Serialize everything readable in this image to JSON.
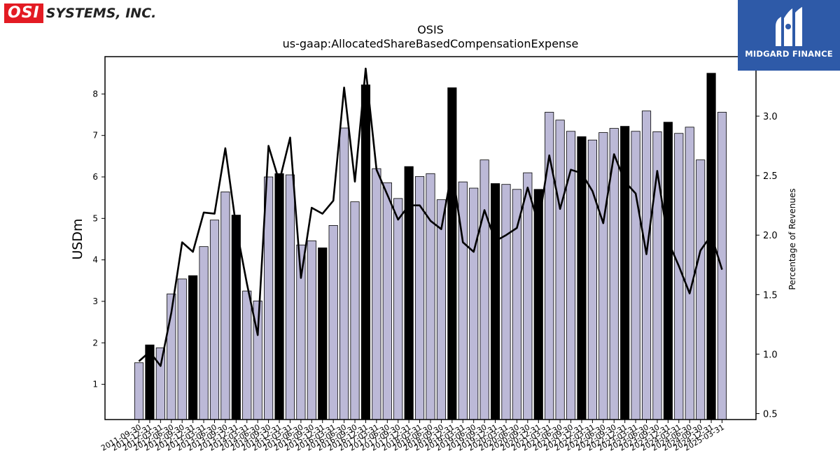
{
  "logos": {
    "left_box": "OSI",
    "left_text": "SYSTEMS, INC.",
    "right_text": "MIDGARD FINANCE"
  },
  "chart_data": {
    "type": "bar",
    "title": "OSIS",
    "subtitle": "us-gaap:AllocatedShareBasedCompensationExpense",
    "ylabel": "USDm",
    "y2label": "Percentage of Revenues",
    "ylim": [
      0.15,
      8.9
    ],
    "y2lim": [
      0.45,
      3.5
    ],
    "yticks": [
      1,
      2,
      3,
      4,
      5,
      6,
      7,
      8
    ],
    "y2ticks": [
      "0.5",
      "1.0",
      "1.5",
      "2.0",
      "2.5",
      "3.0"
    ],
    "categories": [
      "2011-09-30",
      "2011-12-31",
      "2012-03-31",
      "2012-06-30",
      "2012-09-30",
      "2012-12-31",
      "2013-03-31",
      "2013-06-30",
      "2013-09-30",
      "2013-12-31",
      "2014-03-31",
      "2014-06-30",
      "2014-09-30",
      "2014-12-31",
      "2015-03-31",
      "2015-06-30",
      "2015-09-30",
      "2015-12-31",
      "2016-03-31",
      "2016-06-30",
      "2016-09-30",
      "2016-12-31",
      "2017-03-31",
      "2017-06-30",
      "2017-09-30",
      "2017-12-31",
      "2018-03-31",
      "2018-06-30",
      "2018-09-30",
      "2018-12-31",
      "2019-03-31",
      "2019-06-30",
      "2019-09-30",
      "2019-12-31",
      "2020-03-31",
      "2020-06-30",
      "2020-09-30",
      "2020-12-31",
      "2021-03-31",
      "2021-06-30",
      "2021-09-30",
      "2021-12-31",
      "2022-03-31",
      "2022-06-30",
      "2022-09-30",
      "2022-12-31",
      "2023-03-31",
      "2023-06-30",
      "2023-09-30",
      "2023-12-31",
      "2024-03-31",
      "2024-06-30",
      "2024-09-30",
      "2024-12-31",
      "2025-03-31"
    ],
    "series": [
      {
        "type": "bar",
        "axis": "left",
        "values": [
          1.52,
          1.95,
          1.88,
          3.18,
          3.54,
          3.62,
          4.32,
          4.96,
          5.64,
          5.08,
          3.25,
          3.01,
          6.0,
          6.08,
          6.05,
          4.36,
          4.46,
          4.29,
          4.83,
          7.18,
          5.4,
          8.22,
          6.2,
          5.86,
          5.48,
          6.25,
          6.01,
          6.08,
          5.45,
          8.15,
          5.88,
          5.73,
          6.41,
          5.84,
          5.82,
          5.7,
          6.1,
          5.7,
          7.56,
          7.37,
          7.1,
          6.97,
          6.89,
          7.07,
          7.17,
          7.22,
          7.1,
          7.59,
          7.09,
          7.32,
          7.05,
          7.2,
          6.41,
          8.5,
          7.56
        ],
        "highlight": [
          false,
          true,
          false,
          false,
          false,
          true,
          false,
          false,
          false,
          true,
          false,
          false,
          false,
          true,
          false,
          false,
          false,
          true,
          false,
          false,
          false,
          true,
          false,
          false,
          false,
          true,
          false,
          false,
          false,
          true,
          false,
          false,
          false,
          true,
          false,
          false,
          false,
          true,
          false,
          false,
          false,
          true,
          false,
          false,
          false,
          true,
          false,
          false,
          false,
          true,
          false,
          false,
          false,
          true,
          false
        ],
        "color": "#bcb9d7",
        "highlight_color": "#000000"
      },
      {
        "type": "line",
        "axis": "right",
        "values": [
          0.94,
          1.02,
          0.9,
          1.35,
          1.94,
          1.86,
          2.19,
          2.18,
          2.73,
          2.07,
          1.59,
          1.16,
          2.75,
          2.45,
          2.82,
          1.64,
          2.23,
          2.18,
          2.29,
          3.24,
          2.45,
          3.4,
          2.55,
          2.34,
          2.13,
          2.25,
          2.25,
          2.12,
          2.05,
          2.55,
          1.94,
          1.86,
          2.21,
          1.95,
          2.0,
          2.06,
          2.4,
          2.09,
          2.67,
          2.22,
          2.55,
          2.52,
          2.37,
          2.1,
          2.68,
          2.45,
          2.35,
          1.84,
          2.54,
          1.95,
          1.74,
          1.51,
          1.87,
          2.0,
          1.71
        ],
        "color": "#000000"
      }
    ]
  }
}
